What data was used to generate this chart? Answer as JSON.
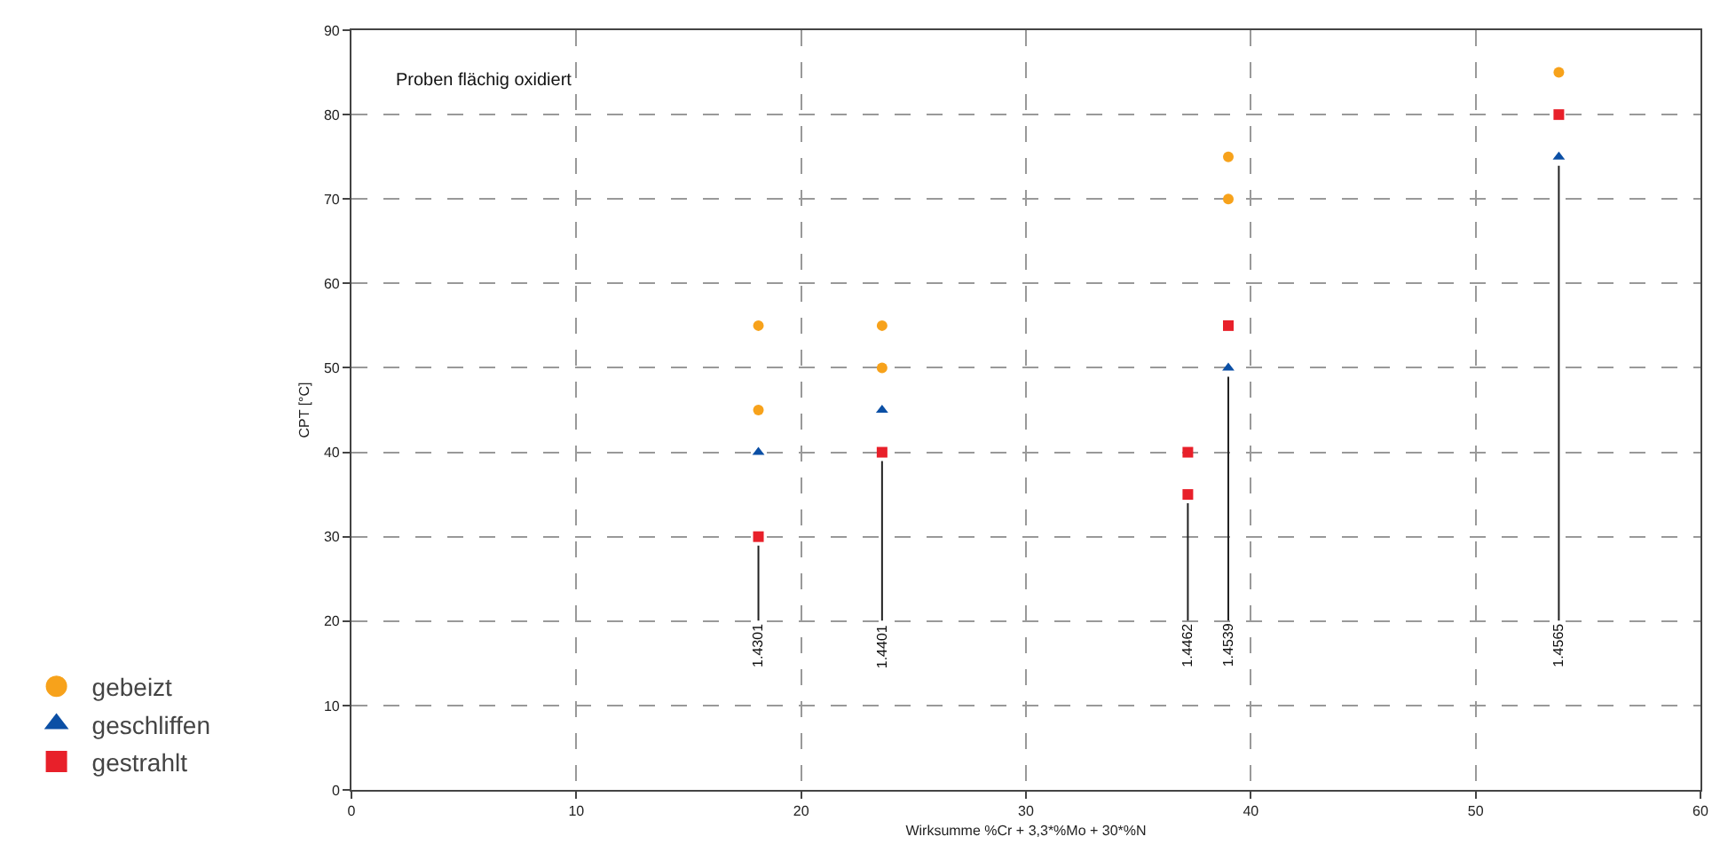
{
  "chart_data": {
    "type": "scatter",
    "xlabel": "Wirksumme %Cr + 3,3*%Mo + 30*%N",
    "ylabel": "CPT [°C]",
    "xlim": [
      0,
      60
    ],
    "xticks": [
      0,
      10,
      20,
      30,
      40,
      50,
      60
    ],
    "ylim": [
      0,
      90
    ],
    "yticks": [
      0,
      10,
      20,
      30,
      40,
      50,
      60,
      70,
      80,
      90
    ],
    "grid": true,
    "legend": "bottom left",
    "series": [
      {
        "name": "gebeizt",
        "color": "#f7a21b",
        "marker": "circle",
        "x": [
          18.1,
          18.1,
          23.6,
          23.6,
          39.0,
          39.0,
          53.7
        ],
        "values": [
          55,
          45,
          55,
          50,
          75,
          70,
          85
        ]
      },
      {
        "name": "geschliffen",
        "color": "#0b4fa5",
        "marker": "triangle",
        "x": [
          18.1,
          23.6,
          39.0,
          53.7
        ],
        "values": [
          40,
          45,
          50,
          75
        ]
      },
      {
        "name": "gestrahlt",
        "color": "#e8202a",
        "marker": "square",
        "x": [
          18.1,
          23.6,
          37.2,
          37.2,
          39.0,
          53.7
        ],
        "values": [
          30,
          40,
          40,
          35,
          55,
          80
        ]
      }
    ],
    "annotations": [
      "Proben flächig oxidiert",
      {
        "text": "1.4301",
        "x": 18.1,
        "y": 30
      },
      {
        "text": "1.4401",
        "x": 23.6,
        "y": 40
      },
      {
        "text": "1.4462",
        "x": 37.2,
        "y": 35
      },
      {
        "text": "1.4539",
        "x": 39.0,
        "y": 50
      },
      {
        "text": "1.4565",
        "x": 53.7,
        "y": 75
      }
    ]
  }
}
